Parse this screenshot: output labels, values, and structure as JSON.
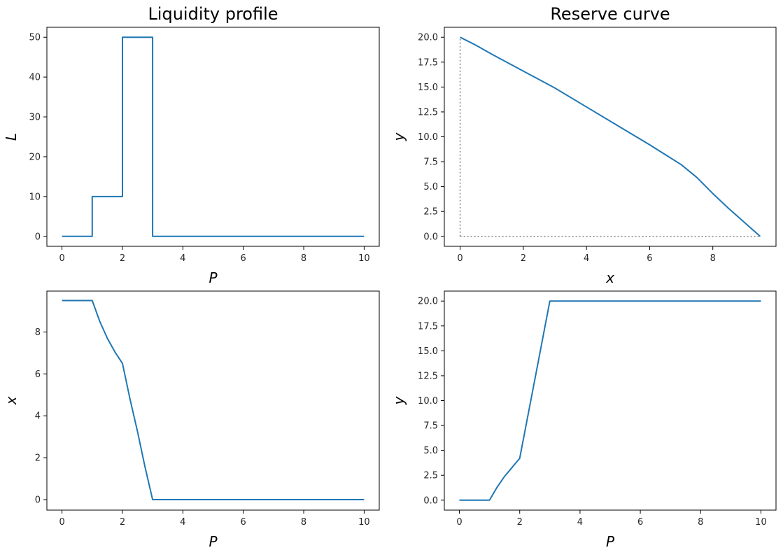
{
  "colors": {
    "series": "#1f77b4",
    "reference": "#808080"
  },
  "chart_data": [
    {
      "type": "line",
      "title": "Liquidity profile",
      "xlabel": "P",
      "ylabel": "L",
      "xlim": [
        -0.5,
        10.5
      ],
      "ylim": [
        -2.5,
        52.5
      ],
      "xticks": [
        0,
        2,
        4,
        6,
        8,
        10
      ],
      "xtick_labels": [
        "0",
        "2",
        "4",
        "6",
        "8",
        "10"
      ],
      "yticks": [
        0,
        10,
        20,
        30,
        40,
        50
      ],
      "ytick_labels": [
        "0",
        "10",
        "20",
        "30",
        "40",
        "50"
      ],
      "series": [
        {
          "x": [
            0,
            1,
            1,
            2,
            2,
            3,
            3,
            10
          ],
          "y": [
            0,
            0,
            10,
            10,
            50,
            50,
            0,
            0
          ]
        }
      ]
    },
    {
      "type": "line",
      "title": "Reserve curve",
      "xlabel": "x",
      "ylabel": "y",
      "xlim": [
        -0.5,
        10.0
      ],
      "ylim": [
        -1.0,
        21.0
      ],
      "xticks": [
        0,
        2,
        4,
        6,
        8
      ],
      "xtick_labels": [
        "0",
        "2",
        "4",
        "6",
        "8"
      ],
      "yticks": [
        0,
        2.5,
        5,
        7.5,
        10,
        12.5,
        15,
        17.5,
        20
      ],
      "ytick_labels": [
        "0.0",
        "2.5",
        "5.0",
        "7.5",
        "10.0",
        "12.5",
        "15.0",
        "17.5",
        "20.0"
      ],
      "series": [
        {
          "x": [
            0,
            0.5,
            1,
            2,
            3,
            4,
            5,
            6,
            6.5,
            7,
            7.5,
            8,
            8.5,
            9,
            9.5
          ],
          "y": [
            20,
            19.2,
            18.3,
            16.6,
            14.9,
            13.0,
            11.1,
            9.2,
            8.2,
            7.2,
            5.9,
            4.3,
            2.8,
            1.4,
            0
          ]
        }
      ],
      "reference_lines": [
        {
          "style": "dotted",
          "x": [
            0,
            0
          ],
          "y": [
            0,
            20
          ]
        },
        {
          "style": "dotted",
          "x": [
            0,
            9.5
          ],
          "y": [
            0,
            0
          ]
        }
      ]
    },
    {
      "type": "line",
      "title": "",
      "xlabel": "P",
      "ylabel": "x",
      "xlim": [
        -0.5,
        10.5
      ],
      "ylim": [
        -0.5,
        9.95
      ],
      "xticks": [
        0,
        2,
        4,
        6,
        8,
        10
      ],
      "xtick_labels": [
        "0",
        "2",
        "4",
        "6",
        "8",
        "10"
      ],
      "yticks": [
        0,
        2,
        4,
        6,
        8
      ],
      "ytick_labels": [
        "0",
        "2",
        "4",
        "6",
        "8"
      ],
      "series": [
        {
          "x": [
            0,
            1,
            1.25,
            1.5,
            1.75,
            2,
            2.25,
            2.5,
            2.75,
            3,
            10
          ],
          "y": [
            9.5,
            9.5,
            8.5,
            7.7,
            7.05,
            6.5,
            4.8,
            3.25,
            1.55,
            0,
            0
          ]
        }
      ]
    },
    {
      "type": "line",
      "title": "",
      "xlabel": "P",
      "ylabel": "y",
      "xlim": [
        -0.5,
        10.5
      ],
      "ylim": [
        -1.0,
        21.0
      ],
      "xticks": [
        0,
        2,
        4,
        6,
        8,
        10
      ],
      "xtick_labels": [
        "0",
        "2",
        "4",
        "6",
        "8",
        "10"
      ],
      "yticks": [
        0,
        2.5,
        5,
        7.5,
        10,
        12.5,
        15,
        17.5,
        20
      ],
      "ytick_labels": [
        "0.0",
        "2.5",
        "5.0",
        "7.5",
        "10.0",
        "12.5",
        "15.0",
        "17.5",
        "20.0"
      ],
      "series": [
        {
          "x": [
            0,
            1,
            1.25,
            1.5,
            1.75,
            2,
            2.5,
            3,
            10
          ],
          "y": [
            0,
            0,
            1.3,
            2.4,
            3.3,
            4.2,
            12.1,
            20,
            20
          ]
        }
      ]
    }
  ]
}
